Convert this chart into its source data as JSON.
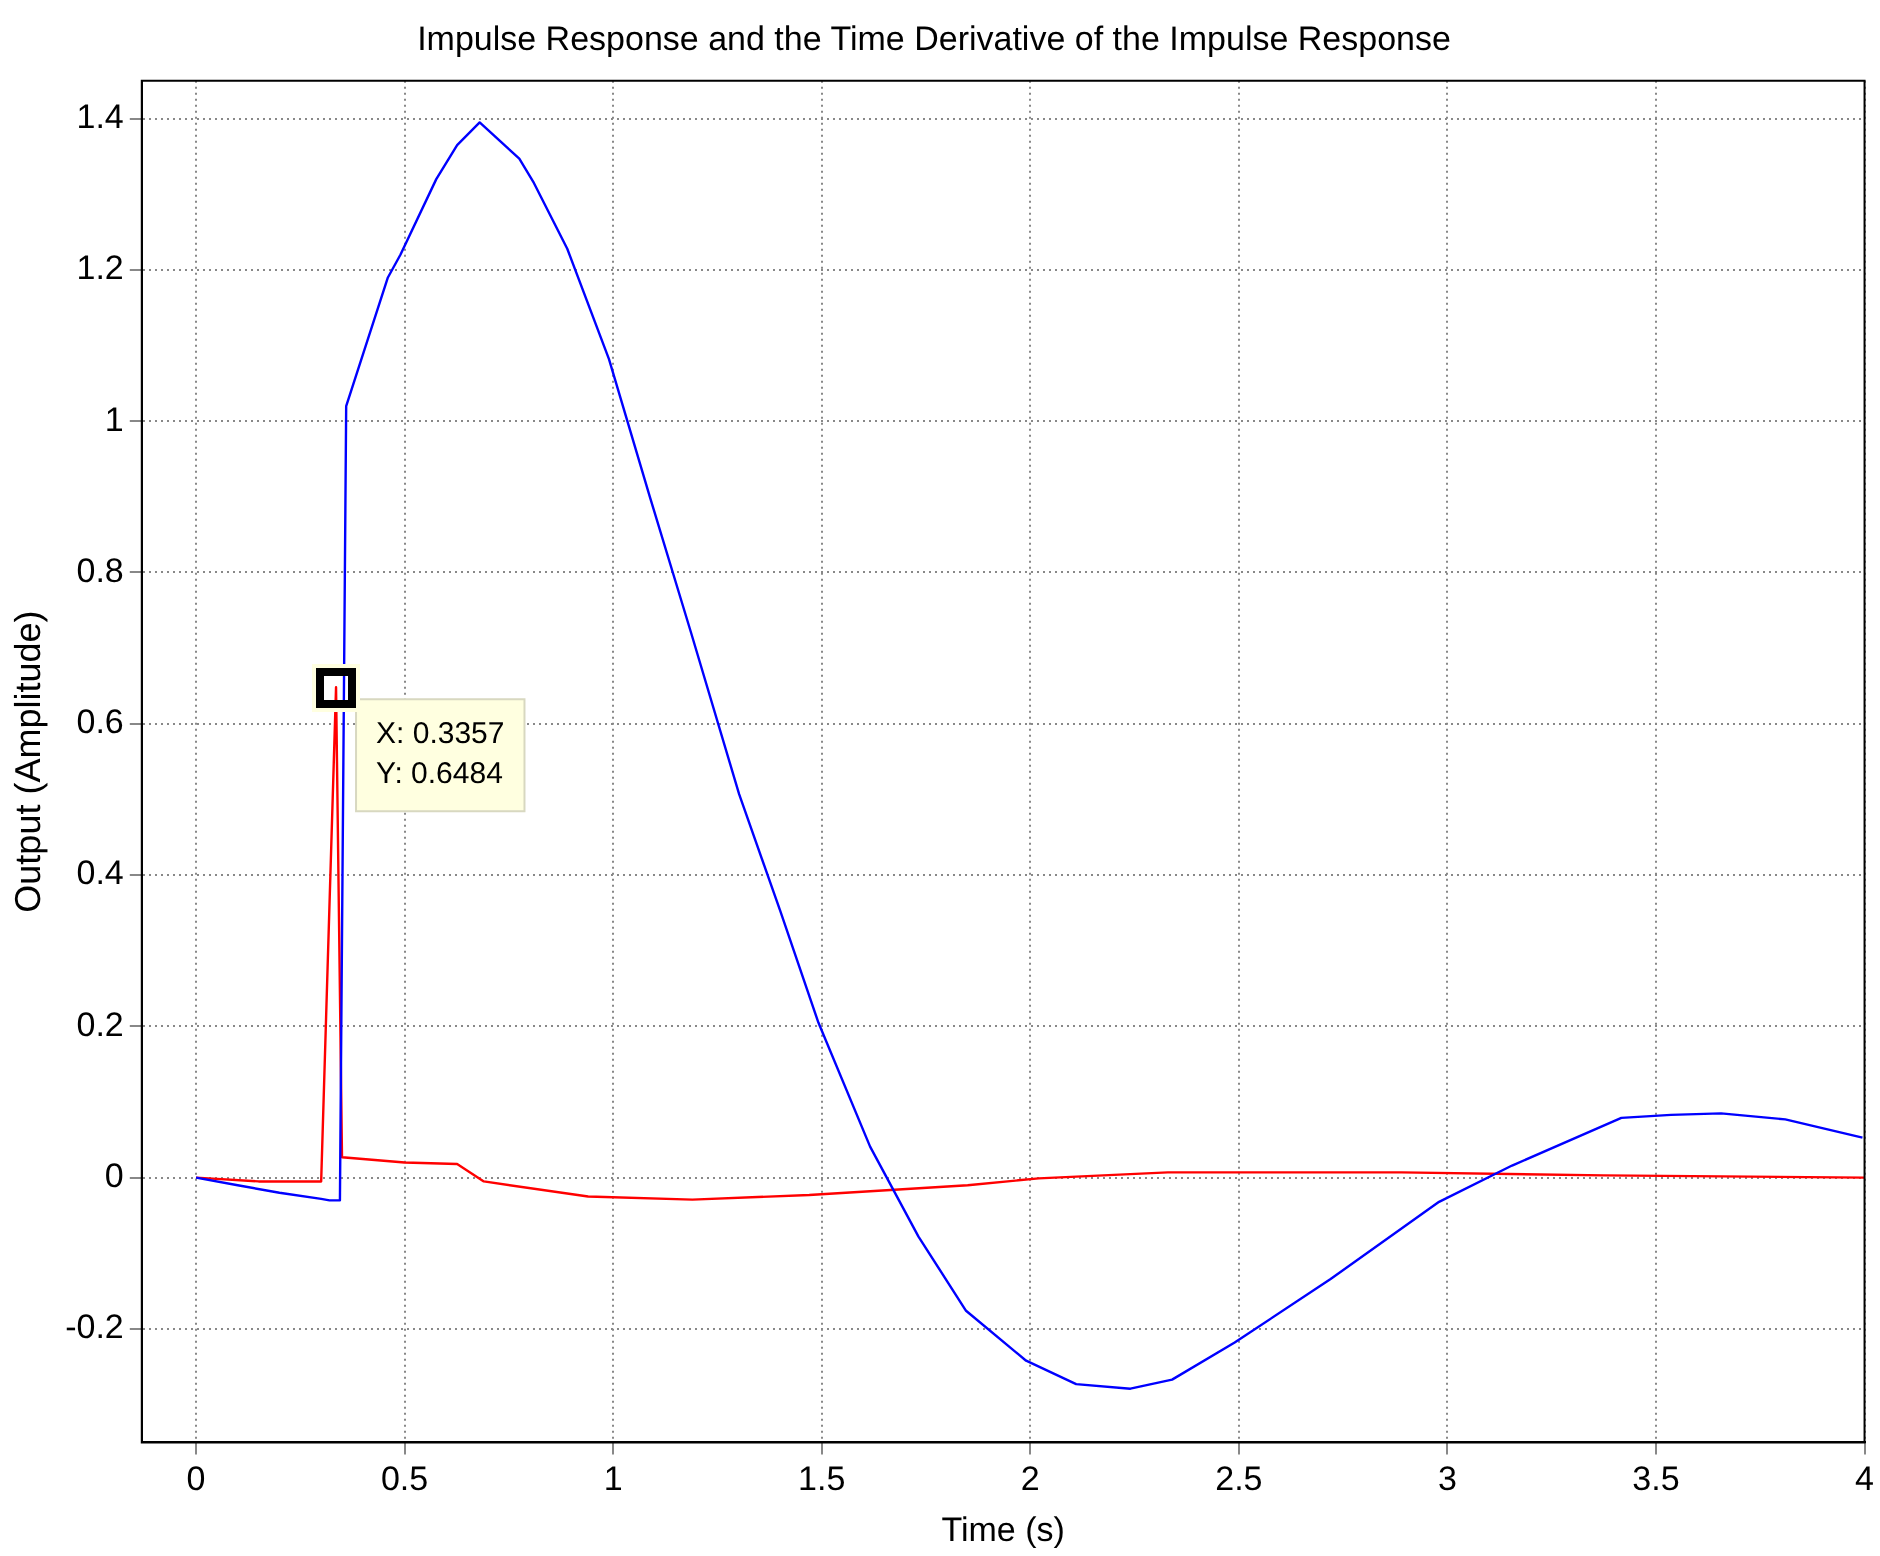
{
  "chart_data": {
    "type": "line",
    "title": "Impulse Response and the Time Derivative of the Impulse Response",
    "xlabel": "Time (s)",
    "ylabel": "Output (Amplitude)",
    "xlim": [
      -0.13,
      4
    ],
    "xticks": [
      0,
      0.5,
      1,
      1.5,
      2,
      2.5,
      3,
      3.5,
      4
    ],
    "ylim": [
      -0.35,
      1.45
    ],
    "yticks": [
      -0.2,
      0,
      0.2,
      0.4,
      0.6,
      0.8,
      1,
      1.2,
      1.4
    ],
    "grid": true,
    "legend": false,
    "marker": "none",
    "line_style": "solid",
    "series": [
      {
        "color": "#0000ff",
        "x": [
          0,
          0.1,
          0.2,
          0.3,
          0.32,
          0.345,
          0.36,
          0.46,
          0.49,
          0.576,
          0.626,
          0.68,
          0.775,
          0.81,
          0.89,
          0.99,
          1.088,
          1.187,
          1.302,
          1.401,
          1.492,
          1.616,
          1.732,
          1.846,
          1.99,
          2.11,
          2.24,
          2.34,
          2.49,
          2.72,
          2.98,
          3.155,
          3.417,
          3.536,
          3.656,
          3.81,
          3.995
        ],
        "values": [
          0,
          -0.01,
          -0.02,
          -0.028,
          -0.03,
          -0.03,
          1.02,
          1.19,
          1.22,
          1.32,
          1.365,
          1.395,
          1.347,
          1.315,
          1.228,
          1.082,
          0.9,
          0.72,
          0.507,
          0.352,
          0.205,
          0.041,
          -0.078,
          -0.176,
          -0.242,
          -0.273,
          -0.279,
          -0.267,
          -0.218,
          -0.134,
          -0.032,
          0.016,
          0.079,
          0.083,
          0.085,
          0.077,
          0.053
        ]
      },
      {
        "color": "#ff0000",
        "x": [
          0,
          0.15,
          0.3,
          0.3357,
          0.35,
          0.5,
          0.626,
          0.69,
          0.94,
          1.19,
          1.47,
          1.85,
          2.02,
          2.33,
          2.89,
          3.375,
          4.0
        ],
        "values": [
          0,
          -0.005,
          -0.005,
          0.6484,
          0.027,
          0.02,
          0.018,
          -0.005,
          -0.025,
          -0.029,
          -0.023,
          -0.01,
          -0.001,
          0.007,
          0.007,
          0.003,
          0
        ]
      }
    ],
    "annotations": [
      {
        "text": "X: 0.3357\nY: 0.6484",
        "x": 0.3357,
        "y": 0.6484
      }
    ]
  }
}
